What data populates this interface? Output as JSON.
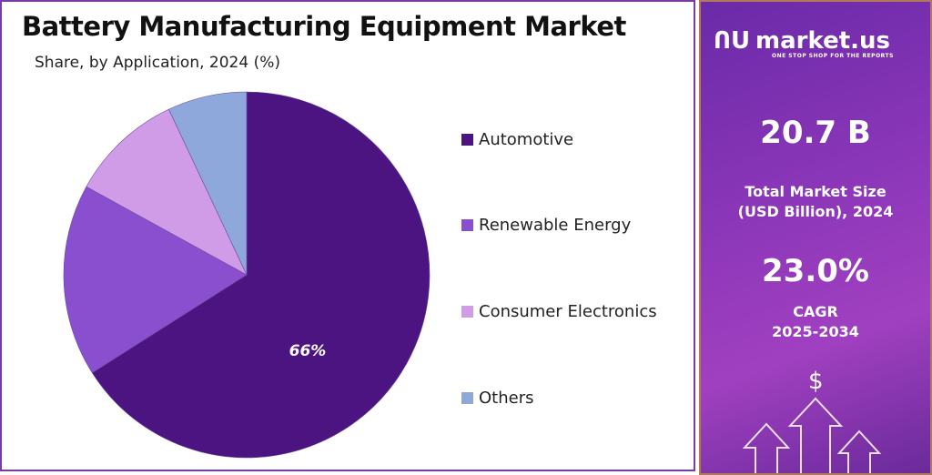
{
  "chart_data": {
    "type": "pie",
    "title": "Battery Manufacturing Equipment Market",
    "subtitle": "Share, by Application, 2024 (%)",
    "categories": [
      "Automotive",
      "Renewable Energy",
      "Consumer Electronics",
      "Others"
    ],
    "values": [
      66,
      17,
      10,
      7
    ],
    "colors": [
      "#4b1480",
      "#8a4fcf",
      "#d09ce8",
      "#8fa8dc"
    ],
    "data_labels": [
      "66%",
      "",
      "",
      ""
    ],
    "legend_position": "right"
  },
  "sidebar": {
    "brand": "market.us",
    "tagline": "ONE STOP SHOP FOR THE REPORTS",
    "market_size": "20.7 B",
    "market_size_label_1": "Total Market Size",
    "market_size_label_2": "(USD Billion), 2024",
    "cagr": "23.0%",
    "cagr_label_1": "CAGR",
    "cagr_label_2": "2025-2034",
    "dollar_symbol": "$"
  }
}
